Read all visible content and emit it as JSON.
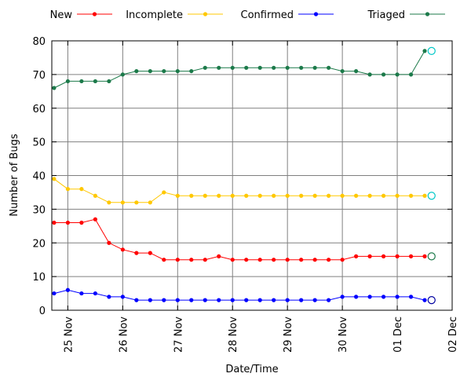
{
  "chart_data": {
    "type": "line",
    "xlabel": "Date/Time",
    "ylabel": "Number of Bugs",
    "ylim": [
      0,
      80
    ],
    "yticks": [
      0,
      10,
      20,
      30,
      40,
      50,
      60,
      70,
      80
    ],
    "xlim": [
      "2011-11-24 17:00",
      "2011-12-02 00:00"
    ],
    "xticks": [
      {
        "label": "25 Nov",
        "date": "2011-11-25"
      },
      {
        "label": "26 Nov",
        "date": "2011-11-26"
      },
      {
        "label": "27 Nov",
        "date": "2011-11-27"
      },
      {
        "label": "28 Nov",
        "date": "2011-11-28"
      },
      {
        "label": "29 Nov",
        "date": "2011-11-29"
      },
      {
        "label": "30 Nov",
        "date": "2011-11-30"
      },
      {
        "label": "01 Dec",
        "date": "2011-12-01"
      },
      {
        "label": "02 Dec",
        "date": "2011-12-02"
      }
    ],
    "grid": true,
    "legend_position": "top",
    "x": [
      "2011-11-24 18:00",
      "2011-11-25 00:00",
      "2011-11-25 06:00",
      "2011-11-25 12:00",
      "2011-11-25 18:00",
      "2011-11-26 00:00",
      "2011-11-26 06:00",
      "2011-11-26 12:00",
      "2011-11-26 18:00",
      "2011-11-27 00:00",
      "2011-11-27 06:00",
      "2011-11-27 12:00",
      "2011-11-27 18:00",
      "2011-11-28 00:00",
      "2011-11-28 06:00",
      "2011-11-28 12:00",
      "2011-11-28 18:00",
      "2011-11-29 00:00",
      "2011-11-29 06:00",
      "2011-11-29 12:00",
      "2011-11-29 18:00",
      "2011-11-30 00:00",
      "2011-11-30 06:00",
      "2011-11-30 12:00",
      "2011-11-30 18:00",
      "2011-12-01 00:00",
      "2011-12-01 06:00",
      "2011-12-01 12:00"
    ],
    "series": [
      {
        "name": "New",
        "color": "#ff0000",
        "values": [
          26,
          26,
          26,
          27,
          20,
          18,
          17,
          17,
          15,
          15,
          15,
          15,
          16,
          15,
          15,
          15,
          15,
          15,
          15,
          15,
          15,
          15,
          16,
          16,
          16,
          16,
          16,
          16
        ]
      },
      {
        "name": "Incomplete",
        "color": "#ffc800",
        "values": [
          39,
          36,
          36,
          34,
          32,
          32,
          32,
          32,
          35,
          34,
          34,
          34,
          34,
          34,
          34,
          34,
          34,
          34,
          34,
          34,
          34,
          34,
          34,
          34,
          34,
          34,
          34,
          34
        ]
      },
      {
        "name": "Confirmed",
        "color": "#0000ff",
        "values": [
          5,
          6,
          5,
          5,
          4,
          4,
          3,
          3,
          3,
          3,
          3,
          3,
          3,
          3,
          3,
          3,
          3,
          3,
          3,
          3,
          3,
          4,
          4,
          4,
          4,
          4,
          4,
          3
        ]
      },
      {
        "name": "Triaged",
        "color": "#1c7a4a",
        "values": [
          66,
          68,
          68,
          68,
          68,
          70,
          71,
          71,
          71,
          71,
          71,
          72,
          72,
          72,
          72,
          72,
          72,
          72,
          72,
          72,
          72,
          71,
          71,
          70,
          70,
          70,
          70,
          77
        ]
      }
    ],
    "current_markers": {
      "x": "2011-12-01 15:00",
      "points": [
        {
          "series": "Triaged",
          "value": 77,
          "color": "#00c8c8"
        },
        {
          "series": "Incomplete",
          "value": 34,
          "color": "#00c8c8"
        },
        {
          "series": "New",
          "value": 16,
          "color": "#1c7a4a"
        },
        {
          "series": "Confirmed",
          "value": 3,
          "color": "#0000a0"
        }
      ]
    }
  }
}
